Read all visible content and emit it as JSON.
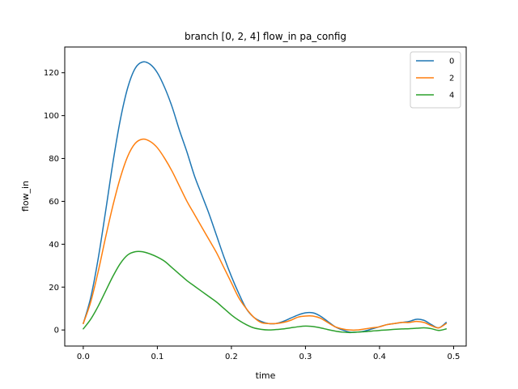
{
  "chart_data": {
    "type": "line",
    "title": "branch [0, 2, 4] flow_in pa_config",
    "xlabel": "time",
    "ylabel": "flow_in",
    "xlim": [
      -0.025,
      0.517
    ],
    "ylim": [
      -7.5,
      132
    ],
    "xticks": [
      0.0,
      0.1,
      0.2,
      0.3,
      0.4,
      0.5
    ],
    "xtick_labels": [
      "0.0",
      "0.1",
      "0.2",
      "0.3",
      "0.4",
      "0.5"
    ],
    "yticks": [
      0,
      20,
      40,
      60,
      80,
      100,
      120
    ],
    "ytick_labels": [
      "0",
      "20",
      "40",
      "60",
      "80",
      "100",
      "120"
    ],
    "grid": false,
    "legend_position": "top-right",
    "series": [
      {
        "name": "0",
        "color": "#1f77b4",
        "x": [
          0.0,
          0.01,
          0.02,
          0.03,
          0.04,
          0.05,
          0.06,
          0.07,
          0.08,
          0.09,
          0.1,
          0.11,
          0.12,
          0.13,
          0.14,
          0.15,
          0.16,
          0.17,
          0.18,
          0.19,
          0.2,
          0.21,
          0.22,
          0.23,
          0.24,
          0.25,
          0.26,
          0.27,
          0.28,
          0.29,
          0.3,
          0.31,
          0.32,
          0.33,
          0.34,
          0.35,
          0.36,
          0.37,
          0.38,
          0.39,
          0.4,
          0.41,
          0.42,
          0.43,
          0.44,
          0.45,
          0.46,
          0.47,
          0.48,
          0.49
        ],
        "values": [
          3,
          15,
          33,
          55,
          78,
          98,
          113,
          122,
          125,
          124,
          120,
          113,
          104,
          93,
          83,
          72,
          63,
          54,
          44,
          34,
          25,
          17,
          10,
          6,
          4,
          3,
          3,
          4,
          5.5,
          7,
          8,
          8,
          6.5,
          4,
          1.5,
          0,
          -1,
          -1,
          -0.5,
          0.5,
          1.5,
          2.5,
          3,
          3.5,
          4,
          5,
          4.5,
          2.5,
          1,
          3.5
        ]
      },
      {
        "name": "2",
        "color": "#ff7f0e",
        "x": [
          0.0,
          0.01,
          0.02,
          0.03,
          0.04,
          0.05,
          0.06,
          0.07,
          0.08,
          0.09,
          0.1,
          0.11,
          0.12,
          0.13,
          0.14,
          0.15,
          0.16,
          0.17,
          0.18,
          0.19,
          0.2,
          0.21,
          0.22,
          0.23,
          0.24,
          0.25,
          0.26,
          0.27,
          0.28,
          0.29,
          0.3,
          0.31,
          0.32,
          0.33,
          0.34,
          0.35,
          0.36,
          0.37,
          0.38,
          0.39,
          0.4,
          0.41,
          0.42,
          0.43,
          0.44,
          0.45,
          0.46,
          0.47,
          0.48,
          0.49
        ],
        "values": [
          3,
          13,
          27,
          43,
          58,
          71,
          81,
          87,
          89,
          88,
          85,
          80,
          74,
          67,
          60,
          54,
          48,
          42,
          36,
          29,
          22,
          15,
          10,
          6,
          3.5,
          3,
          3,
          3.5,
          4.5,
          6,
          6.5,
          6.5,
          5.5,
          3.5,
          1.5,
          0.5,
          0,
          0,
          0.5,
          1,
          1.5,
          2.5,
          3,
          3.5,
          3.5,
          4,
          3.5,
          2,
          1,
          3
        ]
      },
      {
        "name": "4",
        "color": "#2ca02c",
        "x": [
          0.0,
          0.01,
          0.02,
          0.03,
          0.04,
          0.05,
          0.06,
          0.07,
          0.08,
          0.09,
          0.1,
          0.11,
          0.12,
          0.13,
          0.14,
          0.15,
          0.16,
          0.17,
          0.18,
          0.19,
          0.2,
          0.21,
          0.22,
          0.23,
          0.24,
          0.25,
          0.26,
          0.27,
          0.28,
          0.29,
          0.3,
          0.31,
          0.32,
          0.33,
          0.34,
          0.35,
          0.36,
          0.37,
          0.38,
          0.39,
          0.4,
          0.41,
          0.42,
          0.43,
          0.44,
          0.45,
          0.46,
          0.47,
          0.48,
          0.49
        ],
        "values": [
          0.5,
          5,
          11,
          18,
          25,
          31,
          35,
          36.5,
          36.5,
          35.5,
          34,
          32,
          29,
          26,
          23,
          20.5,
          18,
          15.5,
          13,
          10,
          7,
          4.5,
          2.5,
          1,
          0.3,
          0,
          0.2,
          0.5,
          1,
          1.5,
          1.8,
          1.6,
          1,
          0.2,
          -0.5,
          -1,
          -1.2,
          -1,
          -0.8,
          -0.5,
          -0.2,
          0,
          0.3,
          0.5,
          0.6,
          0.8,
          1,
          0.6,
          -0.2,
          0.5
        ]
      }
    ]
  }
}
